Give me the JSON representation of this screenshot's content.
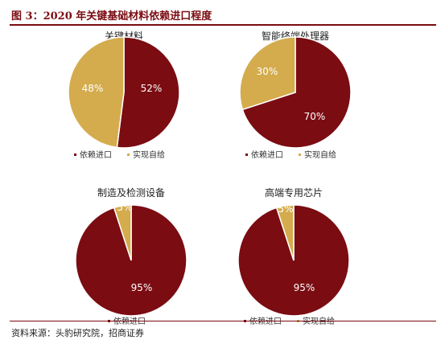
{
  "figure": {
    "title": "图 3：2020 年关键基础材料依赖进口程度",
    "source": "资料来源：头豹研究院，招商证券"
  },
  "colors": {
    "import": "#7a0c12",
    "self": "#d4ac4e"
  },
  "chart_data": [
    {
      "type": "pie",
      "title": "关键材料",
      "slices": [
        {
          "label": "依赖进口",
          "value": 52,
          "text": "52%"
        },
        {
          "label": "实现自给",
          "value": 48,
          "text": "48%"
        }
      ],
      "legend": [
        "依赖进口",
        "实现自给"
      ]
    },
    {
      "type": "pie",
      "title": "智能终端处理器",
      "slices": [
        {
          "label": "依赖进口",
          "value": 70,
          "text": "70%"
        },
        {
          "label": "实现自给",
          "value": 30,
          "text": "30%"
        }
      ],
      "legend": [
        "依赖进口",
        "实现自给"
      ]
    },
    {
      "type": "pie",
      "title": "制造及检测设备",
      "slices": [
        {
          "label": "依赖进口",
          "value": 95,
          "text": "95%"
        },
        {
          "label": "实现自给",
          "value": 5,
          "text": "5%"
        }
      ],
      "legend": [
        "依赖进口"
      ]
    },
    {
      "type": "pie",
      "title": "高端专用芯片",
      "slices": [
        {
          "label": "依赖进口",
          "value": 95,
          "text": "95%"
        },
        {
          "label": "实现自给",
          "value": 5,
          "text": "5%"
        }
      ],
      "legend": [
        "依赖进口",
        "实现自给"
      ]
    }
  ]
}
